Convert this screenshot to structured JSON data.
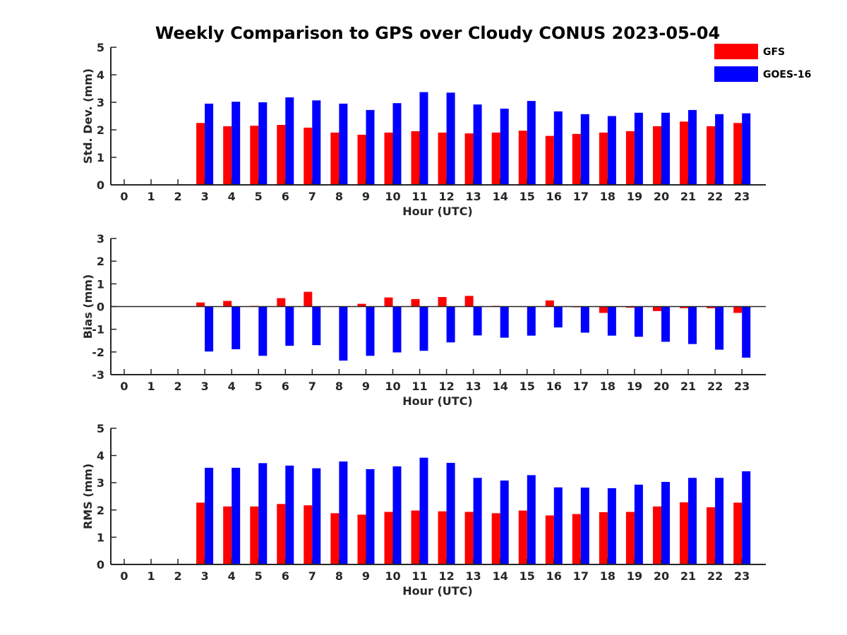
{
  "figure_title": "Weekly Comparison to GPS over Cloudy CONUS 2023-05-04",
  "legend": [
    {
      "label": "GFS",
      "color": "#ff0000"
    },
    {
      "label": "GOES-16",
      "color": "#0000ff"
    }
  ],
  "colors": {
    "GFS": "#ff0000",
    "GOES-16": "#0000ff"
  },
  "chart_data": [
    {
      "type": "bar",
      "xlabel": "Hour (UTC)",
      "ylabel": "Std. Dev. (mm)",
      "ylim": [
        0,
        5
      ],
      "yticks": [
        0,
        1,
        2,
        3,
        4,
        5
      ],
      "categories": [
        "0",
        "1",
        "2",
        "3",
        "4",
        "5",
        "6",
        "7",
        "8",
        "9",
        "10",
        "11",
        "12",
        "13",
        "14",
        "15",
        "16",
        "17",
        "18",
        "19",
        "20",
        "21",
        "22",
        "23"
      ],
      "series": [
        {
          "name": "GFS",
          "values": [
            null,
            null,
            null,
            2.25,
            2.13,
            2.15,
            2.18,
            2.08,
            1.9,
            1.82,
            1.9,
            1.95,
            1.9,
            1.87,
            1.9,
            1.97,
            1.78,
            1.85,
            1.9,
            1.95,
            2.13,
            2.3,
            2.13,
            2.25
          ]
        },
        {
          "name": "GOES-16",
          "values": [
            null,
            null,
            null,
            2.95,
            3.02,
            3.0,
            3.18,
            3.07,
            2.95,
            2.72,
            2.97,
            3.37,
            3.35,
            2.92,
            2.77,
            3.05,
            2.67,
            2.57,
            2.5,
            2.62,
            2.62,
            2.72,
            2.57,
            2.6
          ]
        }
      ]
    },
    {
      "type": "bar",
      "xlabel": "Hour (UTC)",
      "ylabel": "Bias (mm)",
      "ylim": [
        -3,
        3
      ],
      "yticks": [
        -3,
        -2,
        -1,
        0,
        1,
        2,
        3
      ],
      "categories": [
        "0",
        "1",
        "2",
        "3",
        "4",
        "5",
        "6",
        "7",
        "8",
        "9",
        "10",
        "11",
        "12",
        "13",
        "14",
        "15",
        "16",
        "17",
        "18",
        "19",
        "20",
        "21",
        "22",
        "23"
      ],
      "series": [
        {
          "name": "GFS",
          "values": [
            null,
            null,
            null,
            0.18,
            0.25,
            0.03,
            0.37,
            0.65,
            -0.02,
            0.12,
            0.4,
            0.33,
            0.42,
            0.47,
            0.03,
            0.02,
            0.27,
            -0.03,
            -0.28,
            -0.05,
            -0.2,
            -0.07,
            -0.07,
            -0.28
          ]
        },
        {
          "name": "GOES-16",
          "values": [
            null,
            null,
            null,
            -1.98,
            -1.88,
            -2.17,
            -1.73,
            -1.7,
            -2.38,
            -2.17,
            -2.02,
            -1.95,
            -1.58,
            -1.27,
            -1.37,
            -1.28,
            -0.92,
            -1.15,
            -1.28,
            -1.33,
            -1.55,
            -1.65,
            -1.9,
            -2.25
          ]
        }
      ]
    },
    {
      "type": "bar",
      "xlabel": "Hour (UTC)",
      "ylabel": "RMS (mm)",
      "ylim": [
        0,
        5
      ],
      "yticks": [
        0,
        1,
        2,
        3,
        4,
        5
      ],
      "categories": [
        "0",
        "1",
        "2",
        "3",
        "4",
        "5",
        "6",
        "7",
        "8",
        "9",
        "10",
        "11",
        "12",
        "13",
        "14",
        "15",
        "16",
        "17",
        "18",
        "19",
        "20",
        "21",
        "22",
        "23"
      ],
      "series": [
        {
          "name": "GFS",
          "values": [
            null,
            null,
            null,
            2.27,
            2.13,
            2.13,
            2.22,
            2.17,
            1.88,
            1.83,
            1.93,
            1.98,
            1.95,
            1.93,
            1.88,
            1.98,
            1.8,
            1.85,
            1.92,
            1.93,
            2.13,
            2.28,
            2.1,
            2.27
          ]
        },
        {
          "name": "GOES-16",
          "values": [
            null,
            null,
            null,
            3.55,
            3.55,
            3.72,
            3.63,
            3.53,
            3.78,
            3.5,
            3.6,
            3.92,
            3.73,
            3.18,
            3.08,
            3.28,
            2.83,
            2.82,
            2.8,
            2.93,
            3.03,
            3.18,
            3.18,
            3.42
          ]
        }
      ]
    }
  ]
}
